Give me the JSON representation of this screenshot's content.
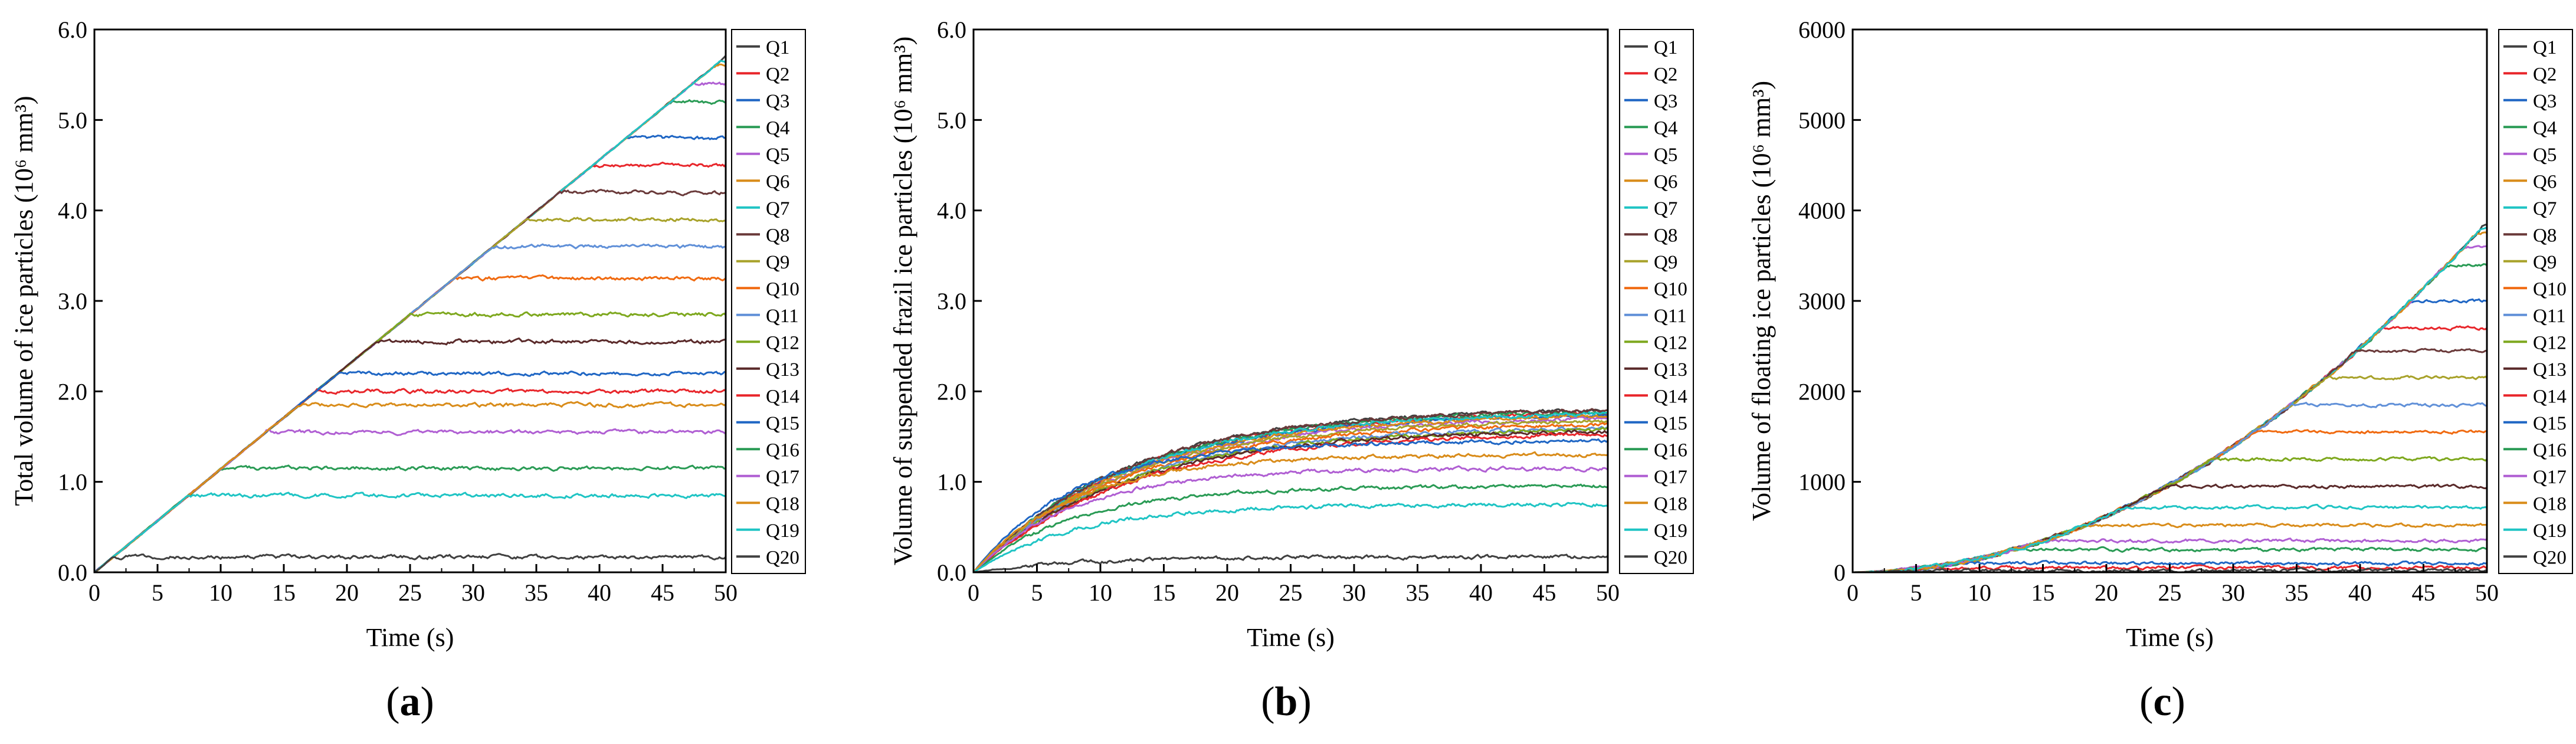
{
  "panels": [
    {
      "label": "a"
    },
    {
      "label": "b"
    },
    {
      "label": "c"
    }
  ],
  "chart_data": [
    {
      "type": "line",
      "panel": "a",
      "xlabel": "Time (s)",
      "ylabel": "Total volume of ice particles (10⁶ mm³)",
      "xlim": [
        0,
        50
      ],
      "ylim": [
        0,
        6
      ],
      "xticks": [
        "0",
        "5",
        "10",
        "15",
        "20",
        "25",
        "30",
        "35",
        "40",
        "45",
        "50"
      ],
      "yticks": [
        "0.0",
        "1.0",
        "2.0",
        "3.0",
        "4.0",
        "5.0",
        "6.0"
      ],
      "legend_position": "right",
      "series": [
        {
          "name": "Q1",
          "color": "#404040",
          "plateau": 5.7
        },
        {
          "name": "Q2",
          "color": "#e8262b",
          "plateau": 4.5
        },
        {
          "name": "Q3",
          "color": "#1f66c4",
          "plateau": 4.8
        },
        {
          "name": "Q4",
          "color": "#2a9b55",
          "plateau": 5.2
        },
        {
          "name": "Q5",
          "color": "#b05fd3",
          "plateau": 5.4
        },
        {
          "name": "Q6",
          "color": "#d98c1a",
          "plateau": 5.6
        },
        {
          "name": "Q7",
          "color": "#1fc4c4",
          "plateau": 5.65
        },
        {
          "name": "Q8",
          "color": "#6a3a3a",
          "plateau": 4.2
        },
        {
          "name": "Q9",
          "color": "#a8a22a",
          "plateau": 3.9
        },
        {
          "name": "Q10",
          "color": "#f06a10",
          "plateau": 3.25
        },
        {
          "name": "Q11",
          "color": "#6090d8",
          "plateau": 3.6
        },
        {
          "name": "Q12",
          "color": "#7ea81e",
          "plateau": 2.85
        },
        {
          "name": "Q13",
          "color": "#5a2a2a",
          "plateau": 2.55
        },
        {
          "name": "Q14",
          "color": "#e8262b",
          "plateau": 2.0
        },
        {
          "name": "Q15",
          "color": "#1f66c4",
          "plateau": 2.2
        },
        {
          "name": "Q16",
          "color": "#2a9b55",
          "plateau": 1.15
        },
        {
          "name": "Q17",
          "color": "#b05fd3",
          "plateau": 1.55
        },
        {
          "name": "Q18",
          "color": "#d98c1a",
          "plateau": 1.85
        },
        {
          "name": "Q19",
          "color": "#1fc4c4",
          "plateau": 0.85
        },
        {
          "name": "Q20",
          "color": "#404040",
          "plateau": 0.17
        }
      ]
    },
    {
      "type": "line",
      "panel": "b",
      "xlabel": "Time (s)",
      "ylabel": "Volume of suspended frazil ice particles (10⁶ mm³)",
      "xlim": [
        0,
        50
      ],
      "ylim": [
        0,
        6
      ],
      "xticks": [
        "0",
        "5",
        "10",
        "15",
        "20",
        "25",
        "30",
        "35",
        "40",
        "45",
        "50"
      ],
      "yticks": [
        "0.0",
        "1.0",
        "2.0",
        "3.0",
        "4.0",
        "5.0",
        "6.0"
      ],
      "legend_position": "right",
      "series": [
        {
          "name": "Q1",
          "color": "#404040",
          "plateau": 1.82
        },
        {
          "name": "Q2",
          "color": "#e8262b",
          "plateau": 1.78
        },
        {
          "name": "Q3",
          "color": "#1f66c4",
          "plateau": 1.76
        },
        {
          "name": "Q4",
          "color": "#2a9b55",
          "plateau": 1.8
        },
        {
          "name": "Q5",
          "color": "#b05fd3",
          "plateau": 1.72
        },
        {
          "name": "Q6",
          "color": "#d98c1a",
          "plateau": 1.75
        },
        {
          "name": "Q7",
          "color": "#1fc4c4",
          "plateau": 1.78
        },
        {
          "name": "Q8",
          "color": "#6a3a3a",
          "plateau": 1.82
        },
        {
          "name": "Q9",
          "color": "#a8a22a",
          "plateau": 1.7
        },
        {
          "name": "Q10",
          "color": "#f06a10",
          "plateau": 1.66
        },
        {
          "name": "Q11",
          "color": "#6090d8",
          "plateau": 1.62
        },
        {
          "name": "Q12",
          "color": "#7ea81e",
          "plateau": 1.6
        },
        {
          "name": "Q13",
          "color": "#5a2a2a",
          "plateau": 1.58
        },
        {
          "name": "Q14",
          "color": "#e8262b",
          "plateau": 1.55
        },
        {
          "name": "Q15",
          "color": "#1f66c4",
          "plateau": 1.45
        },
        {
          "name": "Q16",
          "color": "#2a9b55",
          "plateau": 0.95
        },
        {
          "name": "Q17",
          "color": "#b05fd3",
          "plateau": 1.15
        },
        {
          "name": "Q18",
          "color": "#d98c1a",
          "plateau": 1.3
        },
        {
          "name": "Q19",
          "color": "#1fc4c4",
          "plateau": 0.75
        },
        {
          "name": "Q20",
          "color": "#404040",
          "plateau": 0.17
        }
      ]
    },
    {
      "type": "line",
      "panel": "c",
      "xlabel": "Time (s)",
      "ylabel": "Volume of floating ice particles (10⁶ mm³)",
      "xlim": [
        0,
        50
      ],
      "ylim": [
        0,
        6000
      ],
      "xticks": [
        "0",
        "5",
        "10",
        "15",
        "20",
        "25",
        "30",
        "35",
        "40",
        "45",
        "50"
      ],
      "yticks": [
        "0",
        "1000",
        "2000",
        "3000",
        "4000",
        "5000",
        "6000"
      ],
      "legend_position": "right",
      "series": [
        {
          "name": "Q1",
          "color": "#404040",
          "plateau": 3850
        },
        {
          "name": "Q2",
          "color": "#e8262b",
          "plateau": 2700
        },
        {
          "name": "Q3",
          "color": "#1f66c4",
          "plateau": 3000
        },
        {
          "name": "Q4",
          "color": "#2a9b55",
          "plateau": 3400
        },
        {
          "name": "Q5",
          "color": "#b05fd3",
          "plateau": 3600
        },
        {
          "name": "Q6",
          "color": "#d98c1a",
          "plateau": 3750
        },
        {
          "name": "Q7",
          "color": "#1fc4c4",
          "plateau": 3800
        },
        {
          "name": "Q8",
          "color": "#6a3a3a",
          "plateau": 2450
        },
        {
          "name": "Q9",
          "color": "#a8a22a",
          "plateau": 2150
        },
        {
          "name": "Q10",
          "color": "#f06a10",
          "plateau": 1550
        },
        {
          "name": "Q11",
          "color": "#6090d8",
          "plateau": 1850
        },
        {
          "name": "Q12",
          "color": "#7ea81e",
          "plateau": 1250
        },
        {
          "name": "Q13",
          "color": "#5a2a2a",
          "plateau": 950
        },
        {
          "name": "Q14",
          "color": "#e8262b",
          "plateau": 50
        },
        {
          "name": "Q15",
          "color": "#1f66c4",
          "plateau": 100
        },
        {
          "name": "Q16",
          "color": "#2a9b55",
          "plateau": 250
        },
        {
          "name": "Q17",
          "color": "#b05fd3",
          "plateau": 350
        },
        {
          "name": "Q18",
          "color": "#d98c1a",
          "plateau": 520
        },
        {
          "name": "Q19",
          "color": "#1fc4c4",
          "plateau": 720
        },
        {
          "name": "Q20",
          "color": "#404040",
          "plateau": 20
        }
      ]
    }
  ]
}
